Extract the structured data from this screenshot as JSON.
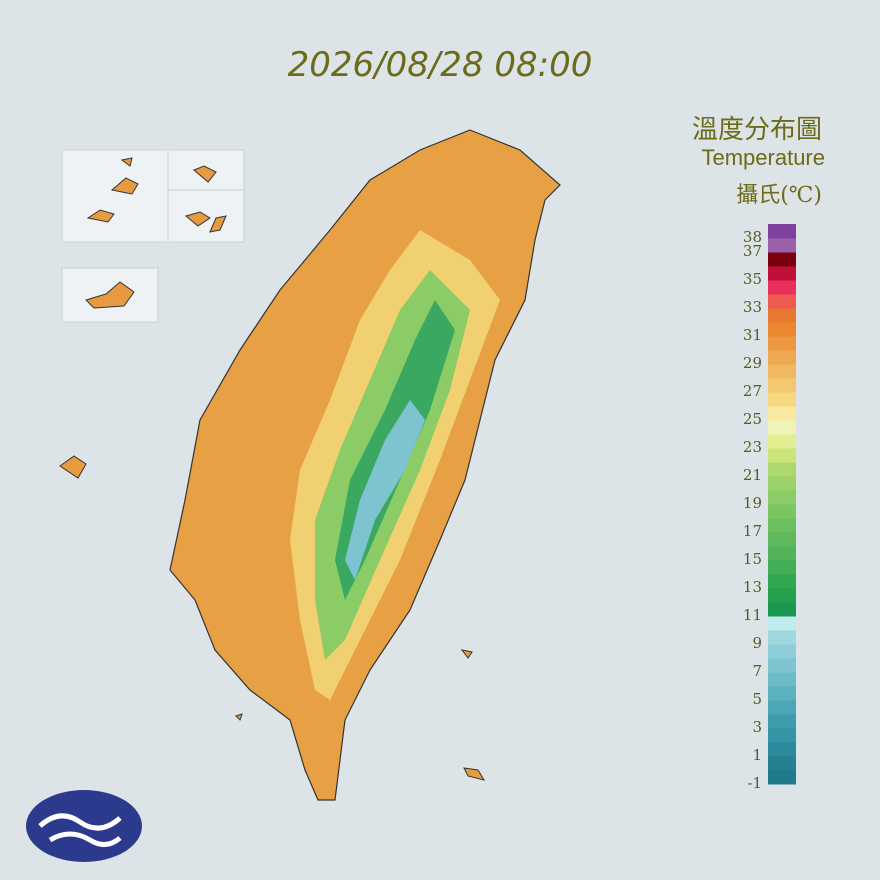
{
  "header": {
    "timestamp": "2026/08/28 08:00"
  },
  "legend": {
    "title": "溫度分布圖",
    "subtitle": "Temperature",
    "unit": "攝氏(℃)",
    "ticks": [
      38,
      37,
      35,
      33,
      31,
      29,
      27,
      25,
      23,
      21,
      19,
      17,
      15,
      13,
      11,
      9,
      7,
      5,
      3,
      1,
      -1
    ],
    "colors": [
      "#1f7a8c",
      "#277f92",
      "#2b8a9c",
      "#3493a4",
      "#3d9cac",
      "#4ba6b6",
      "#5cb0c0",
      "#6dbac8",
      "#7ec4d0",
      "#8fced8",
      "#a0d8e0",
      "#c0ecf0",
      "#1a9850",
      "#24a04f",
      "#2fa84f",
      "#40ae54",
      "#52b35a",
      "#5fb95c",
      "#6cbf5e",
      "#7cc662",
      "#8ccc66",
      "#9cd26a",
      "#acd86e",
      "#cce47a",
      "#e2ee90",
      "#eef4b8",
      "#f8e8a0",
      "#f6d880",
      "#f4c870",
      "#f0b860",
      "#eea850",
      "#ec9840",
      "#ea8830",
      "#e87830",
      "#ee5a50",
      "#e8305a",
      "#c0103a",
      "#7a0010",
      "#9a60a8",
      "#8040a0"
    ]
  }
}
